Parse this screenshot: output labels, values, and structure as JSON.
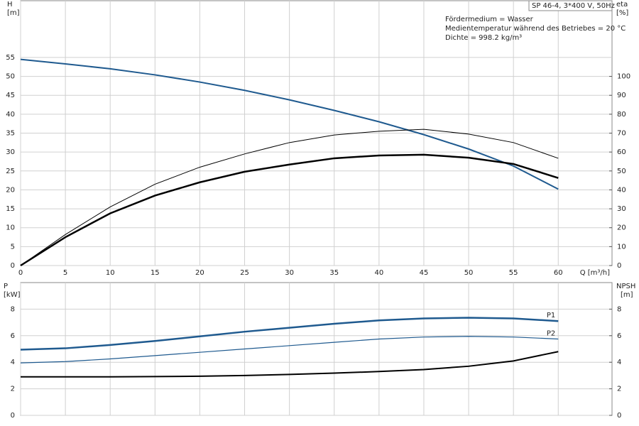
{
  "chart_data": [
    {
      "type": "line",
      "title": "SP 46-4, 3*400 V, 50Hz",
      "annotations": [
        "Fördermedium = Wasser",
        "Medientemperatur während des Betriebes = 20 °C",
        "Dichte = 998.2 kg/m³"
      ],
      "y_label": [
        "H",
        "[m]"
      ],
      "y2_label": [
        "eta",
        "[%]"
      ],
      "x_label": "Q [m³/h]",
      "x": [
        0,
        5,
        10,
        15,
        20,
        25,
        30,
        35,
        40,
        45,
        50,
        55,
        60
      ],
      "xlim": [
        0,
        66
      ],
      "xticks": [
        0,
        5,
        10,
        15,
        20,
        25,
        30,
        35,
        40,
        45,
        50,
        55,
        60
      ],
      "ylim": [
        0,
        70
      ],
      "yticks": [
        0,
        5,
        10,
        15,
        20,
        25,
        30,
        35,
        40,
        45,
        50,
        55
      ],
      "y2lim": [
        0,
        140
      ],
      "y2ticks": [
        0,
        10,
        20,
        30,
        40,
        50,
        60,
        70,
        80,
        90,
        100
      ],
      "grid": true,
      "series": [
        {
          "color": "#1f5a8f",
          "width": 2,
          "values": [
            54.5,
            53.3,
            52.0,
            50.4,
            48.5,
            46.3,
            43.8,
            41.0,
            38.0,
            34.6,
            30.8,
            26.3,
            20.2
          ]
        },
        {
          "color": "#000000",
          "width": 1,
          "axis": "y2",
          "values": [
            0,
            16.4,
            31,
            43,
            52,
            59,
            65,
            69,
            71,
            72,
            69.5,
            65,
            56.7
          ]
        },
        {
          "color": "#000000",
          "width": 2.5,
          "axis": "y2",
          "values": [
            0,
            15,
            27.6,
            37,
            44,
            49.6,
            53.4,
            56.7,
            58.2,
            58.6,
            57,
            53.7,
            46.3
          ]
        }
      ]
    },
    {
      "type": "line",
      "y_label": [
        "P",
        "[kW]"
      ],
      "y2_label": [
        "NPSH",
        "[m]"
      ],
      "x": [
        0,
        5,
        10,
        15,
        20,
        25,
        30,
        35,
        40,
        45,
        50,
        55,
        60
      ],
      "xlim": [
        0,
        66
      ],
      "xticks": [
        0,
        5,
        10,
        15,
        20,
        25,
        30,
        35,
        40,
        45,
        50,
        55,
        60
      ],
      "x_tick_labels": false,
      "ylim": [
        0,
        10
      ],
      "yticks": [
        0,
        2,
        4,
        6,
        8
      ],
      "y2lim": [
        0,
        10
      ],
      "y2ticks": [
        0,
        2,
        4,
        6,
        8
      ],
      "grid": true,
      "series": [
        {
          "name": "P1",
          "color": "#1f5a8f",
          "width": 2.5,
          "values": [
            4.95,
            5.05,
            5.3,
            5.6,
            5.95,
            6.3,
            6.6,
            6.9,
            7.15,
            7.3,
            7.35,
            7.3,
            7.1
          ]
        },
        {
          "name": "P2",
          "color": "#1f5a8f",
          "width": 1.2,
          "values": [
            3.95,
            4.05,
            4.25,
            4.5,
            4.75,
            5.0,
            5.25,
            5.5,
            5.75,
            5.9,
            5.95,
            5.9,
            5.75
          ]
        },
        {
          "color": "#000000",
          "width": 2,
          "axis": "y2",
          "values": [
            2.9,
            2.9,
            2.9,
            2.92,
            2.95,
            3.0,
            3.08,
            3.18,
            3.3,
            3.45,
            3.7,
            4.1,
            4.8
          ]
        }
      ]
    }
  ]
}
